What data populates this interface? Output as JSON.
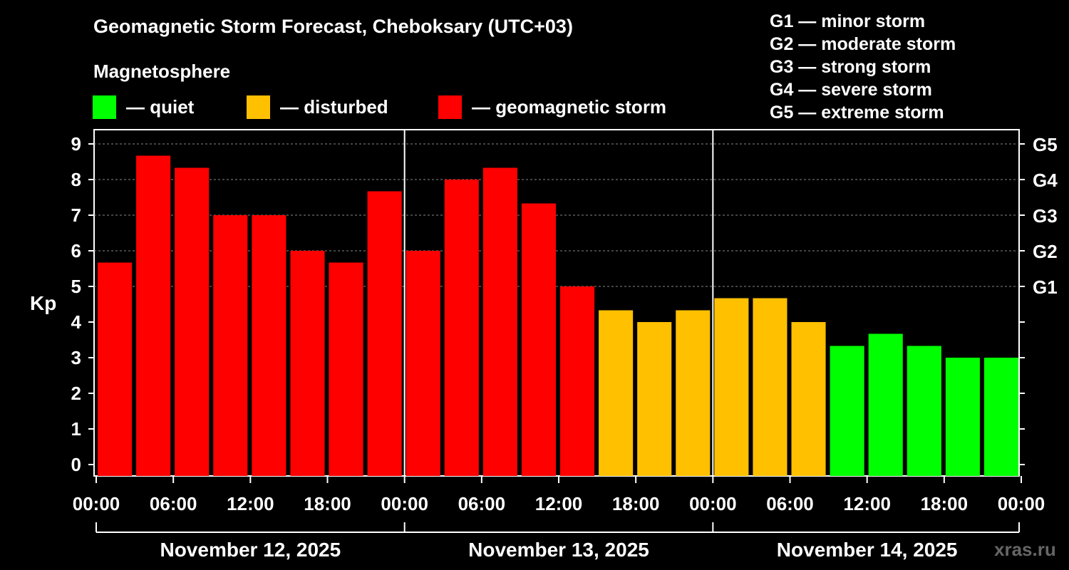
{
  "title": "Geomagnetic Storm Forecast, Cheboksary (UTC+03)",
  "legend": {
    "heading": "Magnetosphere",
    "items": [
      {
        "label": "— quiet",
        "color": "#00ff00"
      },
      {
        "label": "— disturbed",
        "color": "#ffc000"
      },
      {
        "label": "— geomagnetic storm",
        "color": "#ff0000"
      }
    ]
  },
  "g_legend": [
    "G1 — minor storm",
    "G2 — moderate storm",
    "G3 — strong storm",
    "G4 — severe storm",
    "G5 — extreme storm"
  ],
  "watermark": "xras.ru",
  "chart_data": {
    "type": "bar",
    "ylabel": "Kp",
    "ylim": [
      0,
      9
    ],
    "y_ticks": [
      0,
      1,
      2,
      3,
      4,
      5,
      6,
      7,
      8,
      9
    ],
    "right_ticks": [
      {
        "value": 5,
        "label": "G1"
      },
      {
        "value": 6,
        "label": "G2"
      },
      {
        "value": 7,
        "label": "G3"
      },
      {
        "value": 8,
        "label": "G4"
      },
      {
        "value": 9,
        "label": "G5"
      }
    ],
    "x_tick_labels": [
      "00:00",
      "06:00",
      "12:00",
      "18:00",
      "00:00",
      "06:00",
      "12:00",
      "18:00",
      "00:00",
      "06:00",
      "12:00",
      "18:00",
      "00:00"
    ],
    "days": [
      "November 12, 2025",
      "November 13, 2025",
      "November 14, 2025"
    ],
    "interval_hours": 3,
    "values": [
      5.67,
      8.67,
      8.33,
      7.0,
      7.0,
      6.0,
      5.67,
      7.67,
      6.0,
      8.0,
      8.33,
      7.33,
      5.0,
      4.33,
      4.0,
      4.33,
      4.67,
      4.67,
      4.0,
      3.33,
      3.67,
      3.33,
      3.0,
      3.0
    ],
    "colors": {
      "quiet": "#00ff00",
      "disturbed": "#ffc000",
      "storm": "#ff0000"
    },
    "thresholds": {
      "disturbed": 4,
      "storm": 5
    },
    "grid": "dashed horizontal at G levels"
  }
}
